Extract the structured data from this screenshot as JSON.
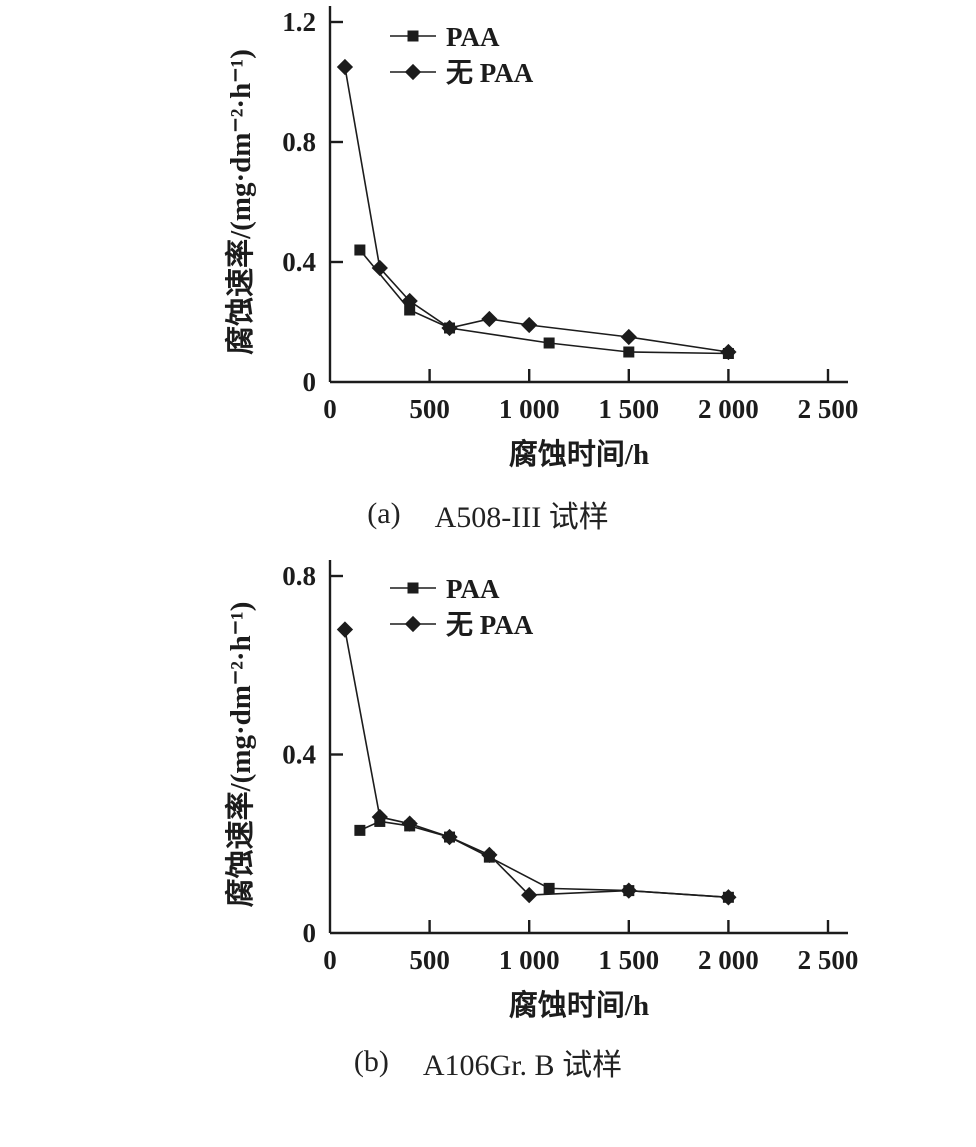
{
  "page": {
    "background": "#ffffff",
    "ink_color": "#1c1c1c"
  },
  "captions": {
    "a": {
      "index": "(a)",
      "label": "A508-III 试样"
    },
    "b": {
      "index": "(b)",
      "label": "A106Gr. B 试样"
    }
  },
  "chart_data": [
    {
      "type": "line",
      "panel": "a",
      "title": "(a) A508-III 试样",
      "xlabel": "腐蚀时间/h",
      "ylabel": "腐蚀速率/(mg·dm⁻²·h⁻¹)",
      "xlim": [
        0,
        2500
      ],
      "ylim": [
        0,
        1.2
      ],
      "xticks": [
        0,
        500,
        1000,
        1500,
        2000,
        2500
      ],
      "xtick_labels": [
        "0",
        "500",
        "1 000",
        "1 500",
        "2 000",
        "2 500"
      ],
      "yticks": [
        0,
        0.4,
        0.8,
        1.2
      ],
      "ytick_labels": [
        "0",
        "0.4",
        "0.8",
        "1.2"
      ],
      "grid": false,
      "legend_position": "top-left",
      "series": [
        {
          "name": "PAA",
          "marker": "square",
          "color": "#1c1c1c",
          "x": [
            150,
            400,
            600,
            1100,
            1500,
            2000
          ],
          "y": [
            0.44,
            0.24,
            0.18,
            0.13,
            0.1,
            0.095
          ]
        },
        {
          "name": "无 PAA",
          "marker": "diamond",
          "color": "#1c1c1c",
          "x": [
            75,
            250,
            400,
            600,
            800,
            1000,
            1500,
            2000
          ],
          "y": [
            1.05,
            0.38,
            0.27,
            0.18,
            0.21,
            0.19,
            0.15,
            0.1
          ]
        }
      ]
    },
    {
      "type": "line",
      "panel": "b",
      "title": "(b) A106Gr. B 试样",
      "xlabel": "腐蚀时间/h",
      "ylabel": "腐蚀速率/(mg·dm⁻²·h⁻¹)",
      "xlim": [
        0,
        2500
      ],
      "ylim": [
        0,
        0.8
      ],
      "xticks": [
        0,
        500,
        1000,
        1500,
        2000,
        2500
      ],
      "xtick_labels": [
        "0",
        "500",
        "1 000",
        "1 500",
        "2 000",
        "2 500"
      ],
      "yticks": [
        0,
        0.4,
        0.8
      ],
      "ytick_labels": [
        "0",
        "0.4",
        "0.8"
      ],
      "grid": false,
      "legend_position": "top-left",
      "series": [
        {
          "name": "PAA",
          "marker": "square",
          "color": "#1c1c1c",
          "x": [
            150,
            250,
            400,
            600,
            800,
            1100,
            1500,
            2000
          ],
          "y": [
            0.23,
            0.25,
            0.24,
            0.215,
            0.17,
            0.1,
            0.095,
            0.08
          ]
        },
        {
          "name": "无 PAA",
          "marker": "diamond",
          "color": "#1c1c1c",
          "x": [
            75,
            250,
            400,
            600,
            800,
            1000,
            1500,
            2000
          ],
          "y": [
            0.68,
            0.26,
            0.245,
            0.215,
            0.175,
            0.085,
            0.095,
            0.08
          ]
        }
      ]
    }
  ]
}
